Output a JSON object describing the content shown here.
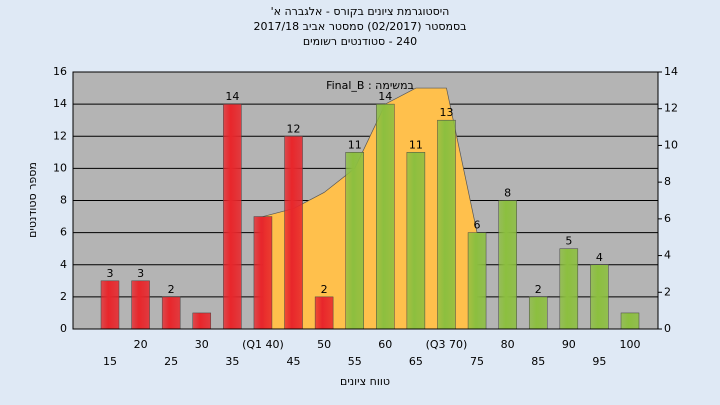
{
  "chart_data": {
    "type": "bar",
    "title": "היסטוגרמת ציונים בקורס - אלגברה א'",
    "subtitle": "בסמסטר (02/2017) סמסטר אביב 2017/18",
    "subtitle2": "240 - סטודנטים רשומים",
    "annotation": "במשימה : Final_B",
    "xlabel": "טווח ציונים",
    "ylabel": "מספר סטודנטים",
    "categories": [
      "15",
      "20",
      "25",
      "30",
      "35",
      "(Q1 40)",
      "45",
      "50",
      "55",
      "60",
      "65",
      "(Q3 70)",
      "75",
      "80",
      "85",
      "90",
      "95",
      "100"
    ],
    "values": [
      3,
      3,
      2,
      1,
      14,
      7,
      12,
      2,
      11,
      14,
      11,
      13,
      6,
      8,
      2,
      5,
      4,
      1
    ],
    "value_labels": [
      "3",
      "3",
      "2",
      null,
      "14",
      null,
      "12",
      "2",
      "11",
      "14",
      "11",
      "13",
      "6",
      "8",
      "2",
      "5",
      "4",
      null
    ],
    "colors": [
      "#e8262b",
      "#e8262b",
      "#e8262b",
      "#e8262b",
      "#e8262b",
      "#e8262b",
      "#e8262b",
      "#e8262b",
      "#8cbf3f",
      "#8cbf3f",
      "#8cbf3f",
      "#8cbf3f",
      "#8cbf3f",
      "#8cbf3f",
      "#8cbf3f",
      "#8cbf3f",
      "#8cbf3f",
      "#8cbf3f"
    ],
    "area": {
      "color": "#ffc04c",
      "values": [
        null,
        null,
        null,
        null,
        null,
        7,
        7.5,
        8.5,
        10,
        14,
        15,
        15,
        6,
        null,
        null,
        null,
        null,
        null
      ]
    },
    "ylim": [
      0,
      16
    ],
    "yticks": [
      0,
      2,
      4,
      6,
      8,
      10,
      12,
      14,
      16
    ],
    "y2lim": [
      0,
      14
    ],
    "y2ticks": [
      0,
      2,
      4,
      6,
      8,
      10,
      12,
      14
    ],
    "grid": true
  }
}
